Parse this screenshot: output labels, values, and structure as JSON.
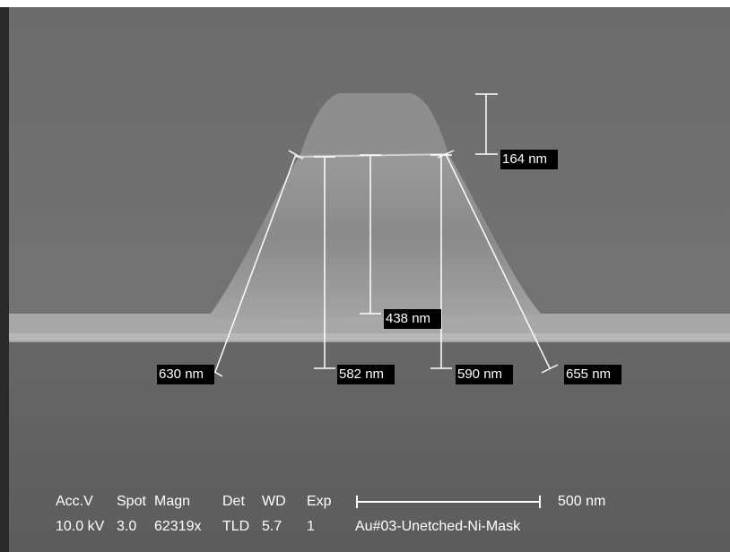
{
  "measurements": [
    "164 nm",
    "438 nm",
    "630 nm",
    "582 nm",
    "590 nm",
    "655 nm"
  ],
  "info": {
    "headers": [
      "Acc.V",
      "Spot",
      "Magn",
      "Det",
      "WD",
      "Exp"
    ],
    "values": [
      "10.0 kV",
      "3.0",
      "62319x",
      "TLD",
      "5.7",
      "1"
    ],
    "scale_bar": "500 nm",
    "sample": "Au#03-Unetched-Ni-Mask"
  }
}
